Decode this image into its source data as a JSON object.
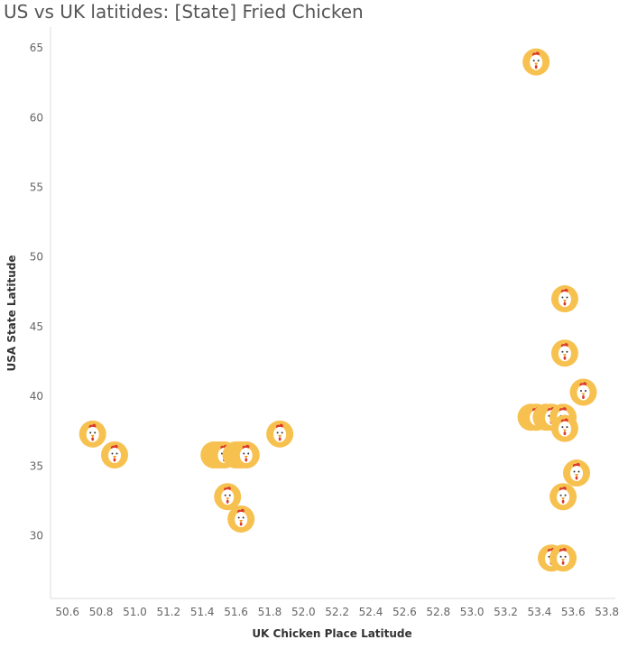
{
  "chart_data": {
    "type": "scatter",
    "title": "US vs UK latitides: [State] Fried Chicken",
    "xlabel": "UK Chicken Place Latitude",
    "ylabel": "USA State Latitude",
    "xlim": [
      50.5,
      53.85
    ],
    "ylim": [
      25.5,
      66.5
    ],
    "x_ticks": [
      "50.6",
      "50.8",
      "51.0",
      "51.2",
      "51.4",
      "51.6",
      "51.8",
      "52.0",
      "52.2",
      "52.4",
      "52.6",
      "52.8",
      "53.0",
      "53.2",
      "53.4",
      "53.6",
      "53.8"
    ],
    "y_ticks": [
      "30",
      "35",
      "40",
      "45",
      "50",
      "55",
      "60",
      "65"
    ],
    "grid": false,
    "marker": "chicken-head-icon",
    "colors": {
      "marker_fill": "#f7c150",
      "face": "#ffffff",
      "comb": "#d93a2b",
      "beak": "#f19a1f",
      "eye": "#333333"
    },
    "points": [
      {
        "x": 50.75,
        "y": 37.3
      },
      {
        "x": 50.88,
        "y": 35.8
      },
      {
        "x": 51.47,
        "y": 35.8
      },
      {
        "x": 51.5,
        "y": 35.8
      },
      {
        "x": 51.53,
        "y": 35.8
      },
      {
        "x": 51.6,
        "y": 35.8
      },
      {
        "x": 51.63,
        "y": 35.8
      },
      {
        "x": 51.66,
        "y": 35.8
      },
      {
        "x": 51.55,
        "y": 32.8
      },
      {
        "x": 51.63,
        "y": 31.2
      },
      {
        "x": 51.86,
        "y": 37.3
      },
      {
        "x": 53.38,
        "y": 64.0
      },
      {
        "x": 53.55,
        "y": 47.0
      },
      {
        "x": 53.55,
        "y": 43.1
      },
      {
        "x": 53.66,
        "y": 40.3
      },
      {
        "x": 53.35,
        "y": 38.5
      },
      {
        "x": 53.38,
        "y": 38.5
      },
      {
        "x": 53.44,
        "y": 38.5
      },
      {
        "x": 53.47,
        "y": 38.5
      },
      {
        "x": 53.54,
        "y": 38.5
      },
      {
        "x": 53.55,
        "y": 37.7
      },
      {
        "x": 53.62,
        "y": 34.5
      },
      {
        "x": 53.54,
        "y": 32.8
      },
      {
        "x": 53.47,
        "y": 28.4
      },
      {
        "x": 53.54,
        "y": 28.4
      }
    ]
  }
}
